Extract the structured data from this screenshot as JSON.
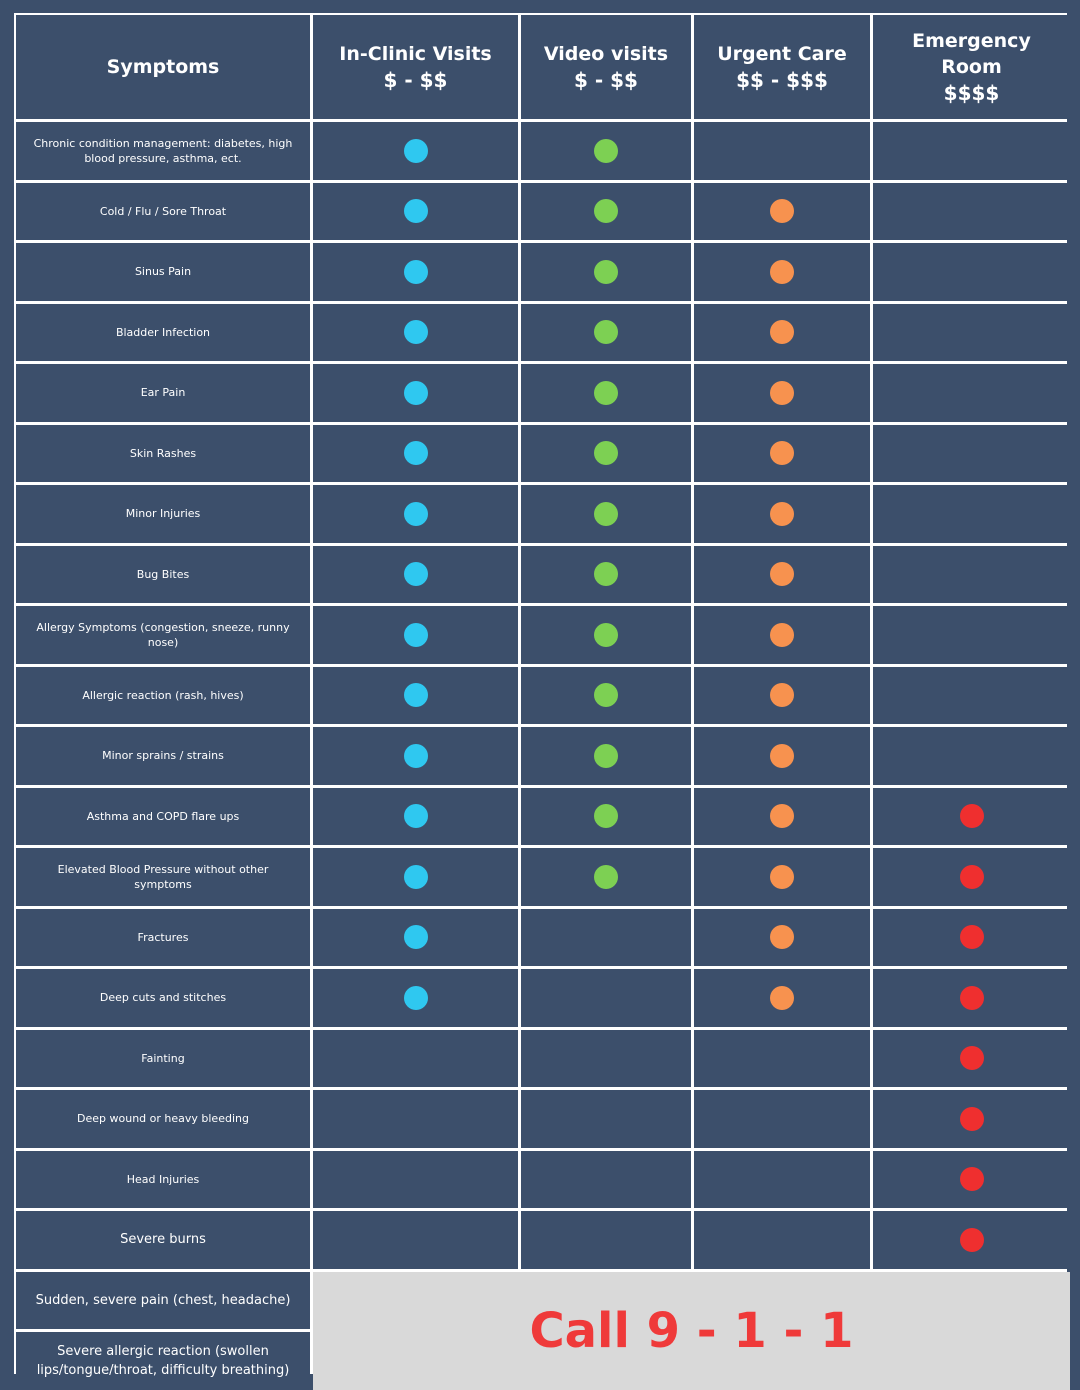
{
  "header": {
    "symptoms": "Symptoms",
    "columns": [
      {
        "name": "In-Clinic Visits",
        "price": "$ - $$"
      },
      {
        "name": "Video visits",
        "price": "$ - $$"
      },
      {
        "name": "Urgent Care",
        "price": "$$ - $$$"
      },
      {
        "name": "Emergency Room",
        "price": "$$$$"
      }
    ]
  },
  "colors": {
    "in_clinic": "#2fc8f0",
    "video": "#7dd053",
    "urgent": "#f7924f",
    "emergency": "#ef2f2f",
    "background": "#3c4f6b"
  },
  "rows": [
    {
      "symptom": "Chronic condition management: diabetes, high blood pressure, asthma, ect.",
      "care": [
        true,
        true,
        false,
        false
      ]
    },
    {
      "symptom": "Cold / Flu / Sore Throat",
      "care": [
        true,
        true,
        true,
        false
      ]
    },
    {
      "symptom": "Sinus Pain",
      "care": [
        true,
        true,
        true,
        false
      ]
    },
    {
      "symptom": "Bladder Infection",
      "care": [
        true,
        true,
        true,
        false
      ]
    },
    {
      "symptom": "Ear Pain",
      "care": [
        true,
        true,
        true,
        false
      ]
    },
    {
      "symptom": "Skin Rashes",
      "care": [
        true,
        true,
        true,
        false
      ]
    },
    {
      "symptom": "Minor Injuries",
      "care": [
        true,
        true,
        true,
        false
      ]
    },
    {
      "symptom": "Bug Bites",
      "care": [
        true,
        true,
        true,
        false
      ]
    },
    {
      "symptom": "Allergy Symptoms (congestion, sneeze, runny nose)",
      "care": [
        true,
        true,
        true,
        false
      ]
    },
    {
      "symptom": "Allergic reaction (rash, hives)",
      "care": [
        true,
        true,
        true,
        false
      ]
    },
    {
      "symptom": "Minor sprains / strains",
      "care": [
        true,
        true,
        true,
        false
      ]
    },
    {
      "symptom": "Asthma and COPD flare ups",
      "care": [
        true,
        true,
        true,
        true
      ]
    },
    {
      "symptom": "Elevated Blood Pressure without other symptoms",
      "care": [
        true,
        true,
        true,
        true
      ]
    },
    {
      "symptom": "Fractures",
      "care": [
        true,
        false,
        true,
        true
      ]
    },
    {
      "symptom": "Deep cuts and stitches",
      "care": [
        true,
        false,
        true,
        true
      ]
    },
    {
      "symptom": "Fainting",
      "care": [
        false,
        false,
        false,
        true
      ]
    },
    {
      "symptom": "Deep wound or heavy bleeding",
      "care": [
        false,
        false,
        false,
        true
      ]
    },
    {
      "symptom": "Head Injuries",
      "care": [
        false,
        false,
        false,
        true
      ]
    },
    {
      "symptom": "Severe burns",
      "care": [
        false,
        false,
        false,
        true
      ]
    }
  ],
  "emergency_rows": [
    "Sudden, severe pain (chest, headache)",
    "Severe allergic reaction (swollen lips/tongue/throat, difficulty breathing)"
  ],
  "call_text": "Call 9 - 1 - 1"
}
